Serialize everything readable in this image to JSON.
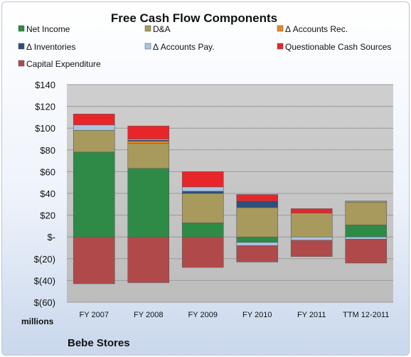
{
  "chart_data": {
    "type": "bar",
    "stacked": true,
    "title": "Free Cash Flow Components",
    "units_label": "millions",
    "company": "Bebe Stores",
    "categories": [
      "FY 2007",
      "FY 2008",
      "FY 2009",
      "FY 2010",
      "FY 2011",
      "TTM 12-2011"
    ],
    "ylim": [
      -60,
      140
    ],
    "yticks": [
      {
        "value": 140,
        "label": "$140"
      },
      {
        "value": 120,
        "label": "$120"
      },
      {
        "value": 100,
        "label": "$100"
      },
      {
        "value": 80,
        "label": "$80"
      },
      {
        "value": 60,
        "label": "$60"
      },
      {
        "value": 40,
        "label": "$40"
      },
      {
        "value": 20,
        "label": "$20"
      },
      {
        "value": 0,
        "label": "$-"
      },
      {
        "value": -20,
        "label": "$(20)"
      },
      {
        "value": -40,
        "label": "$(40)"
      },
      {
        "value": -60,
        "label": "$(60)"
      }
    ],
    "grid": true,
    "legend_position": "top",
    "series": [
      {
        "name": "Net Income",
        "color": "#2e8b47",
        "values": [
          78,
          63,
          13,
          -5,
          0,
          11
        ]
      },
      {
        "name": "D&A",
        "color": "#a89a5c",
        "values": [
          20,
          23,
          27,
          27,
          22,
          21
        ]
      },
      {
        "name": "Δ Accounts Rec.",
        "color": "#e8862a",
        "values": [
          0,
          2,
          0,
          0,
          0,
          1
        ]
      },
      {
        "name": "Δ Inventories",
        "color": "#2f4e7a",
        "values": [
          0,
          1,
          2,
          6,
          0,
          0
        ]
      },
      {
        "name": "Δ Accounts Pay.",
        "color": "#a8c4e4",
        "values": [
          5,
          1,
          4,
          -3,
          -3,
          -2
        ]
      },
      {
        "name": "Questionable Cash Sources",
        "color": "#e8262a",
        "values": [
          10,
          12,
          14,
          6,
          4,
          0
        ]
      },
      {
        "name": "Capital Expenditure",
        "color": "#b04a4a",
        "values": [
          -43,
          -42,
          -28,
          -15,
          -15,
          -22
        ]
      }
    ]
  }
}
